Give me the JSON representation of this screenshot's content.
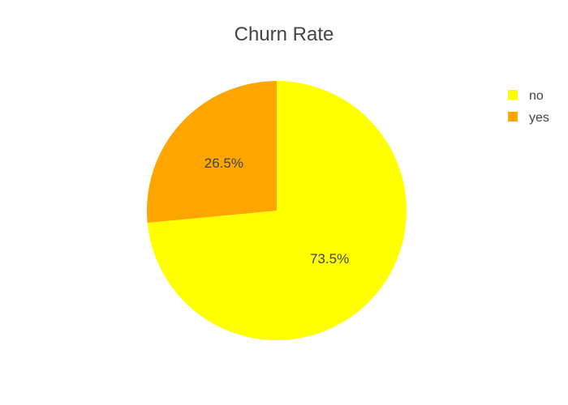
{
  "chart_data": {
    "type": "pie",
    "title": "Churn Rate",
    "categories": [
      "no",
      "yes"
    ],
    "values": [
      73.5,
      26.5
    ],
    "value_labels": [
      "73.5%",
      "26.5%"
    ],
    "colors": [
      "#ffff00",
      "#ffa500"
    ],
    "direction": "clockwise",
    "start_angle_deg": 90,
    "legend_placement": "top-right",
    "legend_order": [
      "no",
      "yes"
    ]
  }
}
